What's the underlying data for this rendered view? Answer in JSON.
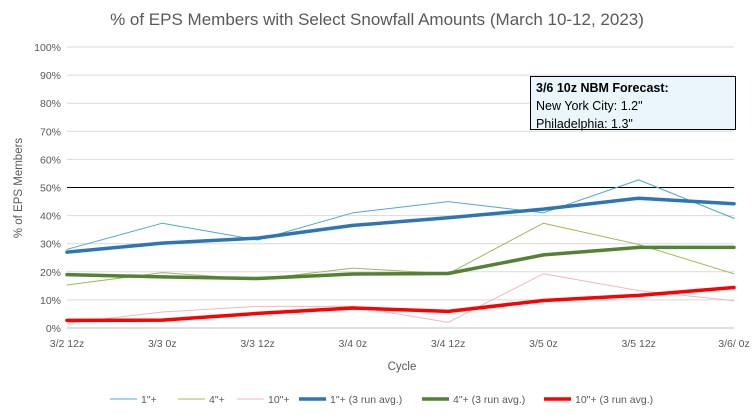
{
  "chart_data": {
    "type": "line",
    "title": "% of EPS Members with Select Snowfall Amounts (March 10-12, 2023)",
    "xlabel": "Cycle",
    "ylabel": "% of EPS Members",
    "categories": [
      "3/2 12z",
      "3/3 0z",
      "3/3 12z",
      "3/4 0z",
      "3/4 12z",
      "3/5 0z",
      "3/5 12z",
      "3/6/ 0z"
    ],
    "yticks": [
      "0%",
      "10%",
      "20%",
      "30%",
      "40%",
      "50%",
      "60%",
      "70%",
      "80%",
      "90%",
      "100%"
    ],
    "ylim": [
      0,
      100
    ],
    "reference_line": 50,
    "series": [
      {
        "name": "1\"+",
        "color": "#4bacc6",
        "width": 1,
        "values": [
          28,
          37.3,
          31.3,
          41,
          45,
          41,
          52.7,
          39
        ]
      },
      {
        "name": "4\"+",
        "color": "#9bbb59",
        "width": 1,
        "values": [
          15.3,
          19.7,
          17.3,
          21.3,
          19.3,
          37.3,
          29.7,
          19.3
        ]
      },
      {
        "name": "10\"+",
        "color": "#f2b8b8",
        "width": 1,
        "values": [
          1.7,
          5.7,
          7.7,
          7.7,
          2,
          19.3,
          13.3,
          9.7
        ]
      },
      {
        "name": "1\"+ (3 run avg.)",
        "color": "#2e75b6",
        "width": 3.5,
        "values": [
          27,
          30.2,
          32,
          36.5,
          39.2,
          42.3,
          46.2,
          44.2
        ]
      },
      {
        "name": "4\"+ (3 run avg.)",
        "color": "#548235",
        "width": 3.5,
        "values": [
          19,
          18.2,
          17.6,
          19.2,
          19.4,
          26,
          28.7,
          28.7
        ]
      },
      {
        "name": "10\"+ (3 run avg.)",
        "color": "#ff0000",
        "width": 3.5,
        "values": [
          2.7,
          2.8,
          5.2,
          7.1,
          5.9,
          9.8,
          11.6,
          14.4
        ]
      }
    ],
    "legend_position": "bottom",
    "annotation": {
      "title": "3/6 10z NBM Forecast:",
      "lines": [
        "New York City: 1.2\"",
        "Philadelphia: 1.3\""
      ]
    }
  }
}
